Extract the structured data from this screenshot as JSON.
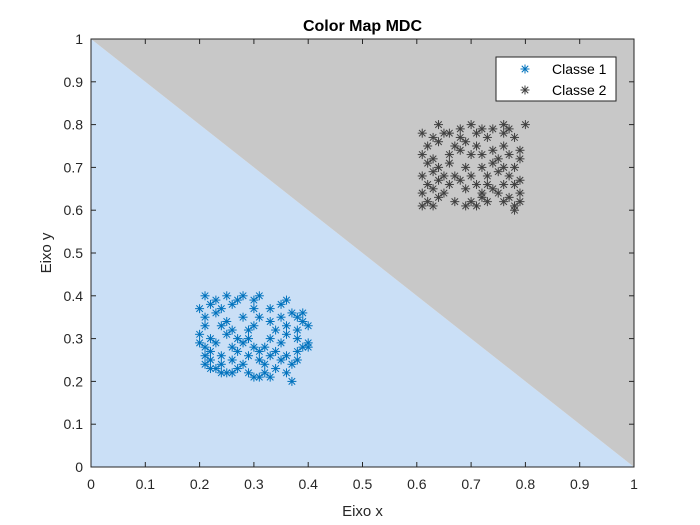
{
  "chart_data": {
    "type": "scatter",
    "title": "Color Map MDC",
    "xlabel": "Eixo x",
    "ylabel": "Eixo y",
    "xlim": [
      0,
      1
    ],
    "ylim": [
      0,
      1
    ],
    "xticks": [
      "0",
      "0.1",
      "0.2",
      "0.3",
      "0.4",
      "0.5",
      "0.6",
      "0.7",
      "0.8",
      "0.9",
      "1"
    ],
    "yticks": [
      "0",
      "0.1",
      "0.2",
      "0.3",
      "0.4",
      "0.5",
      "0.6",
      "0.7",
      "0.8",
      "0.9",
      "1"
    ],
    "grid": false,
    "legend_position": "top-right",
    "decision_regions": [
      {
        "name": "Classe 1",
        "color": "#cadff6",
        "polygon": [
          [
            0,
            0
          ],
          [
            1,
            0
          ],
          [
            0,
            1
          ]
        ]
      },
      {
        "name": "Classe 2",
        "color": "#c8c8c8",
        "polygon": [
          [
            1,
            0
          ],
          [
            1,
            1
          ],
          [
            0,
            1
          ]
        ]
      }
    ],
    "series": [
      {
        "name": "Classe 1",
        "marker": "asterisk",
        "color": "#0072bd",
        "points": [
          [
            0.21,
            0.4
          ],
          [
            0.23,
            0.39
          ],
          [
            0.25,
            0.4
          ],
          [
            0.27,
            0.39
          ],
          [
            0.28,
            0.4
          ],
          [
            0.3,
            0.39
          ],
          [
            0.31,
            0.4
          ],
          [
            0.35,
            0.38
          ],
          [
            0.36,
            0.39
          ],
          [
            0.2,
            0.37
          ],
          [
            0.22,
            0.38
          ],
          [
            0.24,
            0.37
          ],
          [
            0.26,
            0.38
          ],
          [
            0.3,
            0.37
          ],
          [
            0.33,
            0.37
          ],
          [
            0.37,
            0.36
          ],
          [
            0.38,
            0.35
          ],
          [
            0.39,
            0.36
          ],
          [
            0.21,
            0.35
          ],
          [
            0.23,
            0.36
          ],
          [
            0.25,
            0.34
          ],
          [
            0.28,
            0.35
          ],
          [
            0.31,
            0.35
          ],
          [
            0.33,
            0.34
          ],
          [
            0.35,
            0.35
          ],
          [
            0.39,
            0.34
          ],
          [
            0.21,
            0.33
          ],
          [
            0.24,
            0.33
          ],
          [
            0.26,
            0.32
          ],
          [
            0.29,
            0.32
          ],
          [
            0.3,
            0.33
          ],
          [
            0.34,
            0.32
          ],
          [
            0.36,
            0.33
          ],
          [
            0.38,
            0.32
          ],
          [
            0.4,
            0.33
          ],
          [
            0.2,
            0.31
          ],
          [
            0.22,
            0.3
          ],
          [
            0.25,
            0.31
          ],
          [
            0.27,
            0.3
          ],
          [
            0.29,
            0.3
          ],
          [
            0.33,
            0.3
          ],
          [
            0.36,
            0.31
          ],
          [
            0.38,
            0.3
          ],
          [
            0.4,
            0.29
          ],
          [
            0.2,
            0.29
          ],
          [
            0.21,
            0.28
          ],
          [
            0.23,
            0.29
          ],
          [
            0.26,
            0.28
          ],
          [
            0.28,
            0.29
          ],
          [
            0.3,
            0.28
          ],
          [
            0.32,
            0.28
          ],
          [
            0.35,
            0.29
          ],
          [
            0.39,
            0.28
          ],
          [
            0.4,
            0.28
          ],
          [
            0.21,
            0.26
          ],
          [
            0.22,
            0.27
          ],
          [
            0.24,
            0.26
          ],
          [
            0.27,
            0.27
          ],
          [
            0.29,
            0.26
          ],
          [
            0.31,
            0.27
          ],
          [
            0.33,
            0.26
          ],
          [
            0.34,
            0.27
          ],
          [
            0.36,
            0.26
          ],
          [
            0.38,
            0.27
          ],
          [
            0.21,
            0.24
          ],
          [
            0.22,
            0.25
          ],
          [
            0.24,
            0.24
          ],
          [
            0.26,
            0.25
          ],
          [
            0.28,
            0.24
          ],
          [
            0.31,
            0.25
          ],
          [
            0.32,
            0.24
          ],
          [
            0.35,
            0.25
          ],
          [
            0.37,
            0.24
          ],
          [
            0.38,
            0.25
          ],
          [
            0.22,
            0.23
          ],
          [
            0.23,
            0.23
          ],
          [
            0.25,
            0.22
          ],
          [
            0.27,
            0.23
          ],
          [
            0.29,
            0.22
          ],
          [
            0.32,
            0.22
          ],
          [
            0.34,
            0.23
          ],
          [
            0.36,
            0.22
          ],
          [
            0.24,
            0.22
          ],
          [
            0.26,
            0.22
          ],
          [
            0.3,
            0.21
          ],
          [
            0.31,
            0.21
          ],
          [
            0.33,
            0.21
          ],
          [
            0.37,
            0.2
          ]
        ]
      },
      {
        "name": "Classe 2",
        "marker": "asterisk",
        "color": "#404040",
        "points": [
          [
            0.64,
            0.8
          ],
          [
            0.66,
            0.78
          ],
          [
            0.68,
            0.79
          ],
          [
            0.7,
            0.8
          ],
          [
            0.72,
            0.79
          ],
          [
            0.74,
            0.79
          ],
          [
            0.76,
            0.8
          ],
          [
            0.77,
            0.79
          ],
          [
            0.8,
            0.8
          ],
          [
            0.61,
            0.78
          ],
          [
            0.63,
            0.77
          ],
          [
            0.65,
            0.78
          ],
          [
            0.68,
            0.77
          ],
          [
            0.71,
            0.78
          ],
          [
            0.73,
            0.77
          ],
          [
            0.76,
            0.78
          ],
          [
            0.78,
            0.77
          ],
          [
            0.62,
            0.75
          ],
          [
            0.64,
            0.76
          ],
          [
            0.67,
            0.75
          ],
          [
            0.69,
            0.76
          ],
          [
            0.71,
            0.75
          ],
          [
            0.74,
            0.74
          ],
          [
            0.76,
            0.75
          ],
          [
            0.79,
            0.74
          ],
          [
            0.61,
            0.73
          ],
          [
            0.63,
            0.72
          ],
          [
            0.66,
            0.73
          ],
          [
            0.68,
            0.74
          ],
          [
            0.7,
            0.73
          ],
          [
            0.72,
            0.73
          ],
          [
            0.75,
            0.72
          ],
          [
            0.77,
            0.73
          ],
          [
            0.79,
            0.72
          ],
          [
            0.62,
            0.71
          ],
          [
            0.64,
            0.7
          ],
          [
            0.66,
            0.71
          ],
          [
            0.69,
            0.7
          ],
          [
            0.72,
            0.7
          ],
          [
            0.74,
            0.71
          ],
          [
            0.76,
            0.7
          ],
          [
            0.78,
            0.7
          ],
          [
            0.61,
            0.68
          ],
          [
            0.63,
            0.69
          ],
          [
            0.65,
            0.68
          ],
          [
            0.67,
            0.68
          ],
          [
            0.7,
            0.68
          ],
          [
            0.73,
            0.68
          ],
          [
            0.75,
            0.69
          ],
          [
            0.77,
            0.68
          ],
          [
            0.79,
            0.67
          ],
          [
            0.62,
            0.66
          ],
          [
            0.64,
            0.67
          ],
          [
            0.66,
            0.66
          ],
          [
            0.68,
            0.67
          ],
          [
            0.71,
            0.66
          ],
          [
            0.73,
            0.66
          ],
          [
            0.74,
            0.65
          ],
          [
            0.76,
            0.66
          ],
          [
            0.78,
            0.66
          ],
          [
            0.61,
            0.64
          ],
          [
            0.63,
            0.65
          ],
          [
            0.65,
            0.64
          ],
          [
            0.69,
            0.65
          ],
          [
            0.72,
            0.64
          ],
          [
            0.75,
            0.64
          ],
          [
            0.77,
            0.63
          ],
          [
            0.79,
            0.64
          ],
          [
            0.62,
            0.62
          ],
          [
            0.64,
            0.63
          ],
          [
            0.67,
            0.62
          ],
          [
            0.7,
            0.62
          ],
          [
            0.72,
            0.63
          ],
          [
            0.76,
            0.62
          ],
          [
            0.79,
            0.62
          ],
          [
            0.61,
            0.61
          ],
          [
            0.63,
            0.61
          ],
          [
            0.69,
            0.61
          ],
          [
            0.71,
            0.61
          ],
          [
            0.73,
            0.62
          ],
          [
            0.78,
            0.61
          ],
          [
            0.78,
            0.6
          ]
        ]
      }
    ]
  }
}
